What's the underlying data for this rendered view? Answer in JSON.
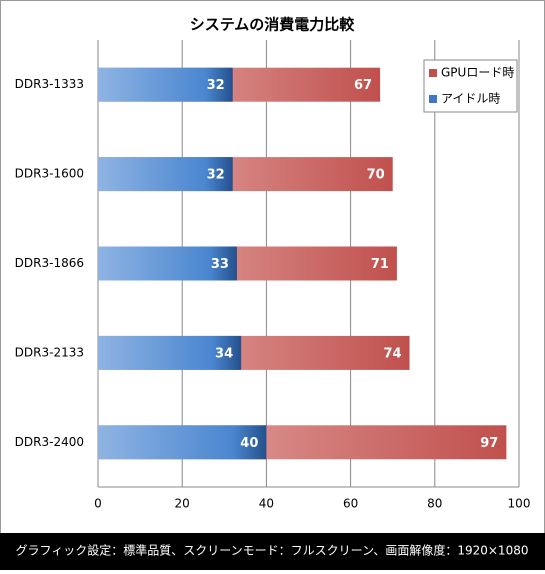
{
  "chart_data": {
    "type": "bar",
    "orientation": "horizontal",
    "title": "システムの消費電力比較",
    "categories": [
      "DDR3-1333",
      "DDR3-1600",
      "DDR3-1866",
      "DDR3-2133",
      "DDR3-2400"
    ],
    "series": [
      {
        "name": "GPUロード時",
        "color": "#c0504d",
        "values": [
          67,
          70,
          71,
          74,
          97
        ]
      },
      {
        "name": "アイドル時",
        "color": "#3f78c4",
        "values": [
          32,
          32,
          33,
          34,
          40
        ]
      }
    ],
    "xlim": [
      0,
      100
    ],
    "xticks": [
      0,
      20,
      40,
      60,
      80,
      100
    ],
    "grid": true,
    "legend": "top-right",
    "footnote": "グラフィック設定：標準品質、スクリーンモード：フルスクリーン、画面解像度：1920×1080"
  }
}
